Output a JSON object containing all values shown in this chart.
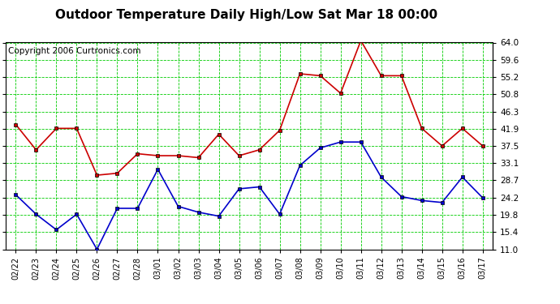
{
  "title": "Outdoor Temperature Daily High/Low Sat Mar 18 00:00",
  "copyright": "Copyright 2006 Curtronics.com",
  "x_labels": [
    "02/22",
    "02/23",
    "02/24",
    "02/25",
    "02/26",
    "02/27",
    "02/28",
    "03/01",
    "03/02",
    "03/03",
    "03/04",
    "03/05",
    "03/06",
    "03/07",
    "03/08",
    "03/09",
    "03/10",
    "03/11",
    "03/12",
    "03/13",
    "03/14",
    "03/15",
    "03/16",
    "03/17"
  ],
  "high_temps": [
    43.0,
    36.5,
    42.0,
    42.0,
    30.0,
    30.5,
    35.5,
    35.0,
    35.0,
    34.5,
    40.5,
    35.0,
    36.5,
    41.5,
    56.0,
    55.5,
    51.0,
    64.5,
    55.5,
    55.5,
    42.0,
    37.5,
    42.0,
    37.5
  ],
  "low_temps": [
    25.0,
    20.0,
    16.0,
    20.0,
    11.0,
    21.5,
    21.5,
    31.5,
    22.0,
    20.5,
    19.5,
    26.5,
    27.0,
    20.0,
    32.5,
    37.0,
    38.5,
    38.5,
    29.5,
    24.5,
    23.5,
    23.0,
    29.5,
    24.2
  ],
  "y_ticks": [
    11.0,
    15.4,
    19.8,
    24.2,
    28.7,
    33.1,
    37.5,
    41.9,
    46.3,
    50.8,
    55.2,
    59.6,
    64.0
  ],
  "ymin": 11.0,
  "ymax": 64.0,
  "high_color": "#cc0000",
  "low_color": "#0000cc",
  "grid_color": "#00cc00",
  "bg_color": "#ffffff",
  "title_fontsize": 11,
  "copyright_fontsize": 7.5
}
